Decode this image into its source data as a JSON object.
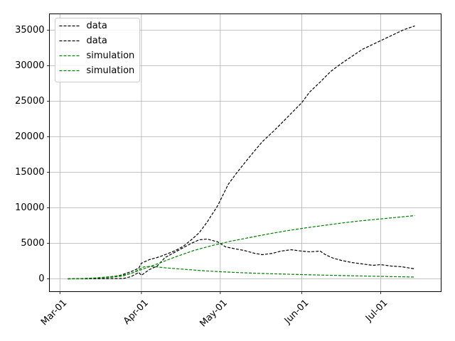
{
  "chart_data": {
    "type": "line",
    "title": "",
    "xlabel": "",
    "ylabel": "",
    "grid": true,
    "legend_position": "top-left",
    "x_ticks": [
      "2020-03-01",
      "2020-04-01",
      "2020-05-01",
      "2020-06-01",
      "2020-07-01"
    ],
    "x_tick_labels": [
      "Mar-01",
      "Apr-01",
      "May-01",
      "Jun-01",
      "Jul-01"
    ],
    "xlim": [
      "2020-02-26",
      "2020-07-24"
    ],
    "ylim": [
      -1800,
      37300
    ],
    "y_ticks": [
      0,
      5000,
      10000,
      15000,
      20000,
      25000,
      30000,
      35000
    ],
    "y_tick_labels": [
      "0",
      "5000",
      "10000",
      "15000",
      "20000",
      "25000",
      "30000",
      "35000"
    ],
    "series": [
      {
        "name": "data",
        "color": "#000000",
        "dash": "dashed",
        "points": [
          [
            "2020-03-04",
            0
          ],
          [
            "2020-03-10",
            30
          ],
          [
            "2020-03-15",
            100
          ],
          [
            "2020-03-20",
            230
          ],
          [
            "2020-03-24",
            500
          ],
          [
            "2020-03-28",
            1000
          ],
          [
            "2020-03-31",
            1500
          ],
          [
            "2020-04-01",
            2200
          ],
          [
            "2020-04-04",
            2700
          ],
          [
            "2020-04-07",
            3000
          ],
          [
            "2020-04-10",
            3400
          ],
          [
            "2020-04-14",
            4000
          ],
          [
            "2020-04-17",
            4600
          ],
          [
            "2020-04-20",
            5500
          ],
          [
            "2020-04-23",
            6500
          ],
          [
            "2020-04-26",
            8000
          ],
          [
            "2020-04-30",
            10300
          ],
          [
            "2020-05-04",
            13300
          ],
          [
            "2020-05-07",
            14800
          ],
          [
            "2020-05-10",
            16200
          ],
          [
            "2020-05-14",
            18000
          ],
          [
            "2020-05-17",
            19300
          ],
          [
            "2020-05-21",
            20700
          ],
          [
            "2020-05-24",
            21800
          ],
          [
            "2020-05-28",
            23300
          ],
          [
            "2020-06-01",
            24800
          ],
          [
            "2020-06-04",
            26300
          ],
          [
            "2020-06-08",
            27700
          ],
          [
            "2020-06-12",
            29200
          ],
          [
            "2020-06-16",
            30300
          ],
          [
            "2020-06-20",
            31300
          ],
          [
            "2020-06-24",
            32300
          ],
          [
            "2020-06-28",
            33000
          ],
          [
            "2020-07-02",
            33700
          ],
          [
            "2020-07-06",
            34400
          ],
          [
            "2020-07-10",
            35100
          ],
          [
            "2020-07-14",
            35600
          ]
        ]
      },
      {
        "name": "data",
        "color": "#000000",
        "dash": "dashed",
        "points": [
          [
            "2020-03-04",
            0
          ],
          [
            "2020-03-10",
            0
          ],
          [
            "2020-03-15",
            10
          ],
          [
            "2020-03-20",
            30
          ],
          [
            "2020-03-25",
            50
          ],
          [
            "2020-03-28",
            300
          ],
          [
            "2020-03-31",
            900
          ],
          [
            "2020-04-01",
            500
          ],
          [
            "2020-04-04",
            1300
          ],
          [
            "2020-04-07",
            1800
          ],
          [
            "2020-04-10",
            3000
          ],
          [
            "2020-04-14",
            3800
          ],
          [
            "2020-04-17",
            4400
          ],
          [
            "2020-04-20",
            5000
          ],
          [
            "2020-04-23",
            5500
          ],
          [
            "2020-04-26",
            5600
          ],
          [
            "2020-04-30",
            5200
          ],
          [
            "2020-05-03",
            4500
          ],
          [
            "2020-05-07",
            4200
          ],
          [
            "2020-05-10",
            4000
          ],
          [
            "2020-05-14",
            3600
          ],
          [
            "2020-05-17",
            3400
          ],
          [
            "2020-05-21",
            3600
          ],
          [
            "2020-05-24",
            3900
          ],
          [
            "2020-05-28",
            4100
          ],
          [
            "2020-06-01",
            3900
          ],
          [
            "2020-06-04",
            3800
          ],
          [
            "2020-06-08",
            3900
          ],
          [
            "2020-06-10",
            3400
          ],
          [
            "2020-06-13",
            2900
          ],
          [
            "2020-06-16",
            2600
          ],
          [
            "2020-06-20",
            2300
          ],
          [
            "2020-06-24",
            2100
          ],
          [
            "2020-06-28",
            1900
          ],
          [
            "2020-07-01",
            2000
          ],
          [
            "2020-07-05",
            1800
          ],
          [
            "2020-07-09",
            1700
          ],
          [
            "2020-07-14",
            1400
          ]
        ]
      },
      {
        "name": "simulation",
        "color": "#008000",
        "dash": "dashed",
        "points": [
          [
            "2020-03-04",
            0
          ],
          [
            "2020-03-10",
            50
          ],
          [
            "2020-03-15",
            150
          ],
          [
            "2020-03-20",
            300
          ],
          [
            "2020-03-25",
            500
          ],
          [
            "2020-03-28",
            750
          ],
          [
            "2020-04-01",
            1300
          ],
          [
            "2020-04-07",
            2100
          ],
          [
            "2020-04-14",
            3100
          ],
          [
            "2020-04-21",
            4000
          ],
          [
            "2020-04-28",
            4700
          ],
          [
            "2020-05-05",
            5300
          ],
          [
            "2020-05-12",
            5800
          ],
          [
            "2020-05-19",
            6300
          ],
          [
            "2020-05-26",
            6750
          ],
          [
            "2020-06-02",
            7150
          ],
          [
            "2020-06-09",
            7500
          ],
          [
            "2020-06-16",
            7850
          ],
          [
            "2020-06-23",
            8150
          ],
          [
            "2020-06-30",
            8400
          ],
          [
            "2020-07-07",
            8650
          ],
          [
            "2020-07-14",
            8900
          ]
        ]
      },
      {
        "name": "simulation",
        "color": "#008000",
        "dash": "dashed",
        "points": [
          [
            "2020-03-04",
            0
          ],
          [
            "2020-03-10",
            30
          ],
          [
            "2020-03-15",
            100
          ],
          [
            "2020-03-20",
            200
          ],
          [
            "2020-03-25",
            400
          ],
          [
            "2020-03-29",
            900
          ],
          [
            "2020-04-02",
            1700
          ],
          [
            "2020-04-05",
            1750
          ],
          [
            "2020-04-10",
            1550
          ],
          [
            "2020-04-17",
            1350
          ],
          [
            "2020-04-24",
            1150
          ],
          [
            "2020-05-01",
            1000
          ],
          [
            "2020-05-08",
            880
          ],
          [
            "2020-05-15",
            780
          ],
          [
            "2020-05-22",
            700
          ],
          [
            "2020-05-29",
            630
          ],
          [
            "2020-06-05",
            560
          ],
          [
            "2020-06-12",
            500
          ],
          [
            "2020-06-19",
            440
          ],
          [
            "2020-06-26",
            380
          ],
          [
            "2020-07-03",
            330
          ],
          [
            "2020-07-10",
            280
          ],
          [
            "2020-07-14",
            250
          ]
        ]
      }
    ]
  }
}
